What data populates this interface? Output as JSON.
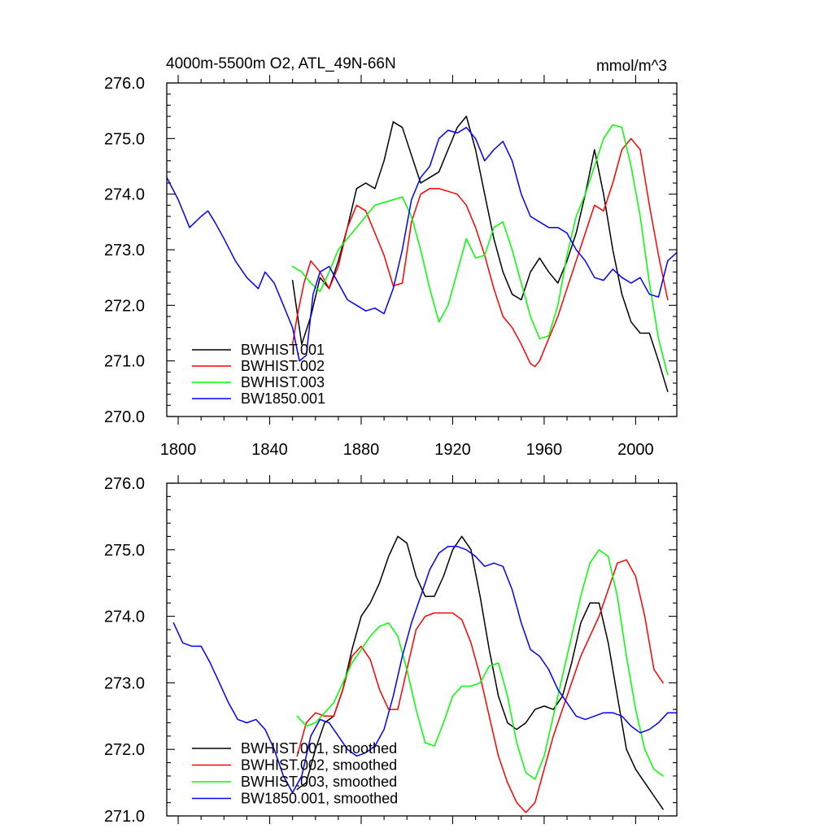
{
  "chart_data": [
    {
      "type": "line",
      "title": "4000m-5500m O2, ATL_49N-66N",
      "units": "mmol/m^3",
      "xlabel": "",
      "ylabel": "",
      "xlim": [
        1795,
        2018
      ],
      "ylim": [
        270.0,
        276.0
      ],
      "x_ticks": [
        1800,
        1840,
        1880,
        1920,
        1960,
        2000
      ],
      "x_tick_labels": [
        "1800",
        "1840",
        "1880",
        "1920",
        "1960",
        "2000"
      ],
      "y_ticks": [
        270,
        271,
        272,
        273,
        274,
        275,
        276
      ],
      "y_tick_labels": [
        "270.0",
        "271.0",
        "272.0",
        "273.0",
        "274.0",
        "275.0",
        "276.0"
      ],
      "grid": false,
      "legend_position": "bottom-left",
      "series": [
        {
          "name": "BWHIST.001",
          "color": "#000000",
          "x": [
            1850,
            1854,
            1858,
            1862,
            1866,
            1870,
            1874,
            1878,
            1882,
            1886,
            1890,
            1894,
            1898,
            1902,
            1906,
            1910,
            1914,
            1918,
            1922,
            1926,
            1930,
            1934,
            1938,
            1942,
            1946,
            1950,
            1954,
            1958,
            1962,
            1966,
            1970,
            1974,
            1978,
            1982,
            1986,
            1990,
            1994,
            1998,
            2002,
            2006,
            2010,
            2014
          ],
          "y": [
            272.45,
            271.3,
            271.8,
            272.5,
            272.3,
            272.8,
            273.4,
            274.1,
            274.2,
            274.1,
            274.6,
            275.3,
            275.2,
            274.7,
            274.2,
            274.3,
            274.4,
            274.8,
            275.2,
            275.4,
            274.8,
            274.0,
            273.2,
            272.6,
            272.2,
            272.1,
            272.6,
            272.85,
            272.6,
            272.4,
            272.8,
            273.3,
            274.0,
            274.8,
            274.0,
            273.0,
            272.2,
            271.7,
            271.5,
            271.5,
            271.0,
            270.45
          ]
        },
        {
          "name": "BWHIST.002",
          "color": "#ff0000",
          "x": [
            1850,
            1852,
            1855,
            1858,
            1862,
            1866,
            1870,
            1874,
            1878,
            1882,
            1886,
            1890,
            1894,
            1898,
            1902,
            1906,
            1910,
            1914,
            1918,
            1922,
            1926,
            1930,
            1934,
            1938,
            1942,
            1946,
            1950,
            1954,
            1956,
            1958,
            1962,
            1966,
            1970,
            1974,
            1978,
            1982,
            1986,
            1990,
            1994,
            1998,
            2002,
            2006,
            2010,
            2014
          ],
          "y": [
            271.3,
            271.8,
            272.4,
            272.8,
            272.6,
            272.3,
            272.7,
            273.4,
            273.8,
            273.7,
            273.3,
            272.9,
            272.35,
            272.4,
            273.5,
            274.0,
            274.1,
            274.1,
            274.05,
            274.0,
            273.8,
            273.4,
            272.9,
            272.3,
            271.8,
            271.6,
            271.3,
            270.95,
            270.9,
            271.0,
            271.4,
            271.8,
            272.3,
            272.8,
            273.3,
            273.8,
            273.7,
            274.2,
            274.8,
            275.0,
            274.8,
            273.8,
            272.9,
            272.1
          ]
        },
        {
          "name": "BWHIST.003",
          "color": "#00ff00",
          "x": [
            1850,
            1854,
            1858,
            1862,
            1866,
            1870,
            1874,
            1878,
            1882,
            1886,
            1890,
            1894,
            1898,
            1902,
            1906,
            1910,
            1914,
            1918,
            1922,
            1926,
            1930,
            1934,
            1938,
            1942,
            1946,
            1950,
            1954,
            1958,
            1962,
            1966,
            1970,
            1974,
            1978,
            1982,
            1986,
            1990,
            1994,
            1998,
            2002,
            2006,
            2010,
            2014
          ],
          "y": [
            272.7,
            272.6,
            272.4,
            272.25,
            272.6,
            273.0,
            273.2,
            273.4,
            273.6,
            273.8,
            273.85,
            273.9,
            273.95,
            273.6,
            273.0,
            272.3,
            271.7,
            272.0,
            272.6,
            273.2,
            272.85,
            272.9,
            273.4,
            273.5,
            273.0,
            272.4,
            271.8,
            271.4,
            271.45,
            272.0,
            272.9,
            273.6,
            274.0,
            274.5,
            275.0,
            275.25,
            275.2,
            274.5,
            273.6,
            272.4,
            271.4,
            270.75
          ]
        },
        {
          "name": "BW1850.001",
          "color": "#0000ff",
          "x": [
            1795,
            1800,
            1805,
            1810,
            1813,
            1816,
            1820,
            1825,
            1830,
            1835,
            1838,
            1842,
            1846,
            1850,
            1853,
            1856,
            1859,
            1862,
            1866,
            1870,
            1874,
            1878,
            1882,
            1886,
            1890,
            1894,
            1898,
            1902,
            1906,
            1910,
            1914,
            1918,
            1922,
            1926,
            1930,
            1934,
            1938,
            1942,
            1946,
            1950,
            1954,
            1958,
            1962,
            1966,
            1970,
            1974,
            1978,
            1982,
            1986,
            1990,
            1994,
            1998,
            2002,
            2006,
            2010,
            2014,
            2018
          ],
          "y": [
            274.3,
            273.9,
            273.4,
            273.6,
            273.7,
            273.5,
            273.2,
            272.8,
            272.5,
            272.3,
            272.6,
            272.4,
            272.0,
            271.6,
            271.0,
            271.1,
            272.2,
            272.6,
            272.7,
            272.4,
            272.1,
            272.0,
            271.9,
            271.95,
            271.85,
            272.3,
            273.0,
            273.9,
            274.3,
            274.5,
            275.0,
            275.15,
            275.1,
            275.2,
            275.0,
            274.6,
            274.8,
            274.95,
            274.6,
            274.0,
            273.6,
            273.5,
            273.4,
            273.4,
            273.3,
            273.0,
            272.8,
            272.5,
            272.45,
            272.65,
            272.5,
            272.4,
            272.5,
            272.2,
            272.15,
            272.8,
            272.95
          ]
        }
      ]
    },
    {
      "type": "line",
      "title": "",
      "xlabel": "",
      "ylabel": "",
      "xlim": [
        1795,
        2018
      ],
      "ylim": [
        271.0,
        276.0
      ],
      "x_ticks": [
        1800,
        1840,
        1880,
        1920,
        1960,
        2000
      ],
      "x_tick_labels": [],
      "y_ticks": [
        271,
        272,
        273,
        274,
        275,
        276
      ],
      "y_tick_labels": [
        "271.0",
        "272.0",
        "273.0",
        "274.0",
        "275.0",
        "276.0"
      ],
      "grid": false,
      "legend_position": "bottom-left",
      "series": [
        {
          "name": "BWHIST.001, smoothed",
          "color": "#000000",
          "x": [
            1852,
            1856,
            1860,
            1864,
            1868,
            1872,
            1876,
            1880,
            1884,
            1888,
            1892,
            1896,
            1900,
            1904,
            1908,
            1912,
            1916,
            1920,
            1924,
            1928,
            1932,
            1936,
            1940,
            1944,
            1948,
            1952,
            1956,
            1960,
            1964,
            1968,
            1972,
            1976,
            1980,
            1984,
            1988,
            1992,
            1996,
            2000,
            2004,
            2008,
            2012
          ],
          "y": [
            271.4,
            271.5,
            272.0,
            272.4,
            272.5,
            272.9,
            273.5,
            274.0,
            274.2,
            274.5,
            274.9,
            275.2,
            275.1,
            274.6,
            274.3,
            274.3,
            274.6,
            275.0,
            275.2,
            275.0,
            274.3,
            273.5,
            272.8,
            272.4,
            272.3,
            272.4,
            272.6,
            272.65,
            272.6,
            272.8,
            273.3,
            273.9,
            274.2,
            274.2,
            273.6,
            272.8,
            272.0,
            271.7,
            271.5,
            271.3,
            271.1
          ]
        },
        {
          "name": "BWHIST.002, smoothed",
          "color": "#ff0000",
          "x": [
            1852,
            1856,
            1860,
            1864,
            1868,
            1872,
            1876,
            1880,
            1884,
            1888,
            1892,
            1896,
            1900,
            1904,
            1908,
            1912,
            1916,
            1920,
            1924,
            1928,
            1932,
            1936,
            1940,
            1944,
            1948,
            1952,
            1956,
            1960,
            1964,
            1968,
            1972,
            1976,
            1980,
            1984,
            1988,
            1992,
            1996,
            2000,
            2004,
            2008,
            2012
          ],
          "y": [
            271.9,
            272.4,
            272.55,
            272.5,
            272.5,
            272.9,
            273.4,
            273.55,
            273.35,
            272.9,
            272.6,
            272.6,
            273.2,
            273.8,
            274.0,
            274.05,
            274.05,
            274.05,
            273.95,
            273.6,
            273.1,
            272.5,
            271.9,
            271.5,
            271.2,
            271.05,
            271.2,
            271.7,
            272.2,
            272.6,
            273.0,
            273.4,
            273.7,
            274.0,
            274.4,
            274.8,
            274.85,
            274.6,
            274.0,
            273.2,
            273.0
          ]
        },
        {
          "name": "BWHIST.003, smoothed",
          "color": "#00ff00",
          "x": [
            1852,
            1856,
            1860,
            1864,
            1868,
            1872,
            1876,
            1880,
            1884,
            1888,
            1892,
            1896,
            1900,
            1904,
            1908,
            1912,
            1916,
            1920,
            1924,
            1928,
            1932,
            1936,
            1940,
            1944,
            1948,
            1952,
            1956,
            1960,
            1964,
            1968,
            1972,
            1976,
            1980,
            1984,
            1988,
            1992,
            1996,
            2000,
            2004,
            2008,
            2012
          ],
          "y": [
            272.5,
            272.35,
            272.4,
            272.55,
            272.7,
            273.0,
            273.3,
            273.5,
            273.7,
            273.85,
            273.9,
            273.7,
            273.2,
            272.6,
            272.1,
            272.05,
            272.4,
            272.8,
            272.95,
            272.95,
            273.0,
            273.25,
            273.3,
            272.8,
            272.1,
            271.65,
            271.55,
            271.9,
            272.5,
            273.1,
            273.7,
            274.3,
            274.8,
            275.0,
            274.9,
            274.3,
            273.4,
            272.6,
            272.0,
            271.7,
            271.6
          ]
        },
        {
          "name": "BW1850.001, smoothed",
          "color": "#0000ff",
          "x": [
            1798,
            1802,
            1806,
            1810,
            1814,
            1818,
            1822,
            1826,
            1830,
            1834,
            1838,
            1842,
            1846,
            1850,
            1854,
            1858,
            1862,
            1866,
            1870,
            1874,
            1878,
            1882,
            1886,
            1890,
            1894,
            1898,
            1902,
            1906,
            1910,
            1914,
            1918,
            1922,
            1926,
            1930,
            1934,
            1938,
            1942,
            1946,
            1950,
            1954,
            1958,
            1962,
            1966,
            1970,
            1974,
            1978,
            1982,
            1986,
            1990,
            1994,
            1998,
            2002,
            2006,
            2010,
            2014,
            2018
          ],
          "y": [
            273.9,
            273.6,
            273.55,
            273.55,
            273.3,
            273.0,
            272.7,
            272.45,
            272.4,
            272.45,
            272.3,
            272.0,
            271.6,
            271.35,
            271.6,
            272.2,
            272.45,
            272.4,
            272.2,
            272.0,
            271.9,
            271.95,
            272.05,
            272.3,
            272.8,
            273.4,
            273.9,
            274.3,
            274.7,
            274.95,
            275.05,
            275.05,
            275.0,
            274.9,
            274.75,
            274.8,
            274.75,
            274.4,
            273.9,
            273.5,
            273.4,
            273.2,
            272.9,
            272.7,
            272.5,
            272.45,
            272.5,
            272.55,
            272.55,
            272.5,
            272.35,
            272.25,
            272.3,
            272.4,
            272.55,
            272.55
          ]
        }
      ]
    }
  ]
}
